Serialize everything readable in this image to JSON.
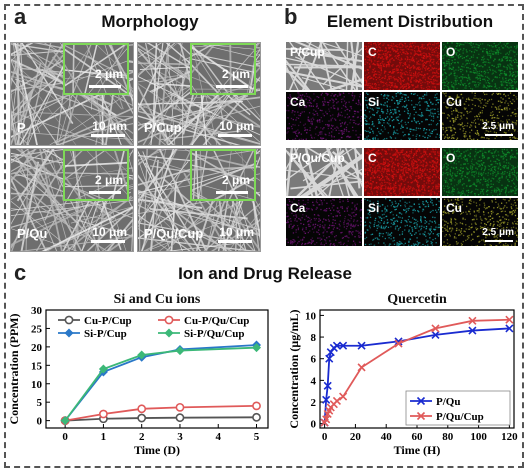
{
  "panels": {
    "a": {
      "letter": "a",
      "title": "Morphology"
    },
    "b": {
      "letter": "b",
      "title": "Element Distribution"
    },
    "c": {
      "letter": "c",
      "title": "Ion and Drug Release"
    }
  },
  "sem_images": [
    {
      "label": "P",
      "inset_scale": "2 μm",
      "scale": "10 μm"
    },
    {
      "label": "P/Cup",
      "inset_scale": "2 μm",
      "scale": "10 μm"
    },
    {
      "label": "P/Qu",
      "inset_scale": "2 μm",
      "scale": "10 μm"
    },
    {
      "label": "P/Qu/Cup",
      "inset_scale": "2 μm",
      "scale": "10 μm"
    }
  ],
  "element_maps": {
    "group1": [
      "P/Cup",
      "C",
      "O",
      "Ca",
      "Si",
      "Cu"
    ],
    "group2": [
      "P/Qu/Cup",
      "C",
      "O",
      "Ca",
      "Si",
      "Cu"
    ],
    "scale": "2.5 μm",
    "colors": {
      "C": "#d01010",
      "O": "#0f8a2a",
      "Ca": "#6a1470",
      "Si": "#1aa0a8",
      "Cu": "#9a9a2a"
    }
  },
  "chart_data": [
    {
      "type": "line",
      "title": "Si and Cu ions",
      "xlabel": "Time (D)",
      "ylabel": "Concentration (PPM)",
      "xlim": [
        -0.5,
        5.3
      ],
      "ylim": [
        -2,
        30
      ],
      "xticks": [
        "0",
        "1",
        "2",
        "3",
        "4",
        "5"
      ],
      "yticks": [
        "0",
        "5",
        "10",
        "15",
        "20",
        "25",
        "30"
      ],
      "x": [
        0,
        1,
        2,
        3,
        5
      ],
      "legend_position": "top",
      "series": [
        {
          "name": "Cu-P/Cup",
          "color": "#555555",
          "marker": "circle",
          "values": [
            0,
            0.5,
            0.7,
            0.8,
            0.9
          ]
        },
        {
          "name": "Cu-P/Qu/Cup",
          "color": "#e05a5a",
          "marker": "circle",
          "values": [
            0,
            1.8,
            3.2,
            3.6,
            4.0
          ]
        },
        {
          "name": "Si-P/Cup",
          "color": "#2a78c8",
          "marker": "diamond",
          "values": [
            0,
            13.2,
            17.2,
            19.3,
            20.5
          ]
        },
        {
          "name": "Si-P/Qu/Cup",
          "color": "#3cb878",
          "marker": "diamond",
          "values": [
            0,
            14.0,
            17.8,
            19.0,
            19.8
          ]
        }
      ]
    },
    {
      "type": "line",
      "title": "Quercetin",
      "xlabel": "Time (H)",
      "ylabel": "Concentration (μg/mL)",
      "xlim": [
        -3,
        123
      ],
      "ylim": [
        -0.4,
        10.5
      ],
      "xticks": [
        "0",
        "20",
        "40",
        "60",
        "80",
        "100",
        "120"
      ],
      "yticks": [
        "0",
        "2",
        "4",
        "6",
        "8",
        "10"
      ],
      "legend_position": "bottom-right",
      "series": [
        {
          "name": "P/Qu",
          "color": "#1a2bd0",
          "marker": "x",
          "x": [
            0,
            1,
            2,
            3,
            4,
            6,
            8,
            12,
            24,
            48,
            72,
            96,
            120
          ],
          "values": [
            0.1,
            2.2,
            3.5,
            6.0,
            6.6,
            7.0,
            7.2,
            7.2,
            7.2,
            7.6,
            8.2,
            8.6,
            8.8
          ]
        },
        {
          "name": "P/Qu/Cup",
          "color": "#e05a5a",
          "marker": "x",
          "x": [
            0,
            1,
            2,
            3,
            4,
            6,
            8,
            12,
            24,
            48,
            72,
            96,
            120
          ],
          "values": [
            0.1,
            0.4,
            0.9,
            1.2,
            1.5,
            1.8,
            2.1,
            2.5,
            5.2,
            7.4,
            8.8,
            9.5,
            9.6
          ]
        }
      ]
    }
  ]
}
